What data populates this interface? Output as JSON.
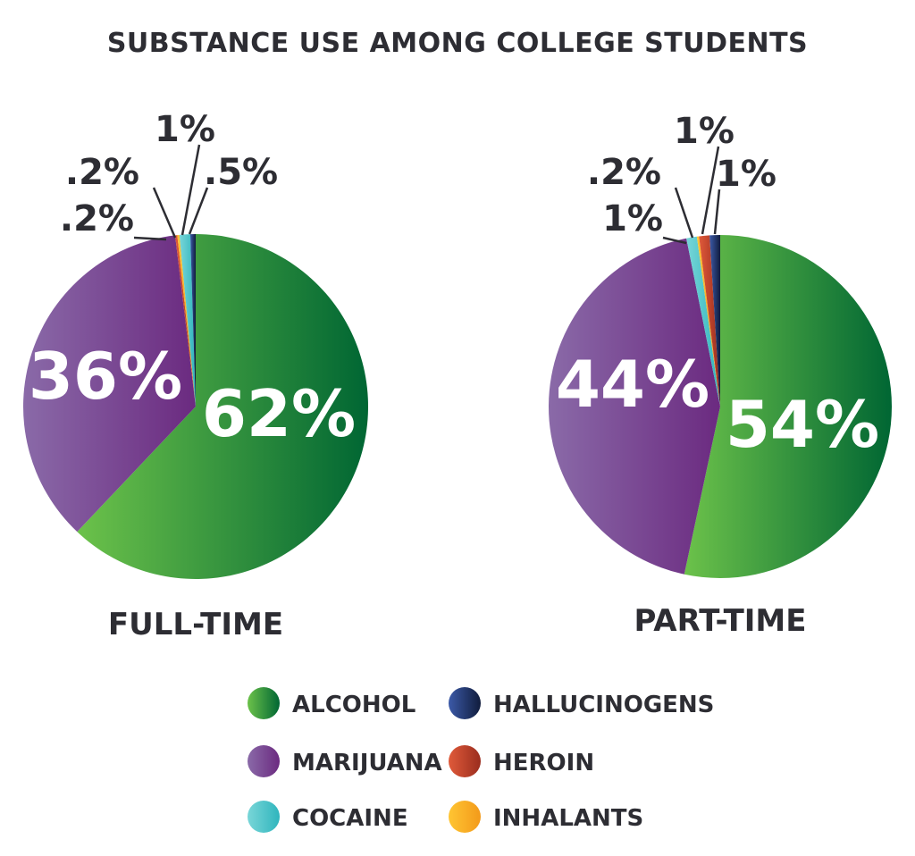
{
  "colors": {
    "alcohol": [
      "#6cc24a",
      "#006633"
    ],
    "marijuana": [
      "#8a6aa8",
      "#6b2a80"
    ],
    "cocaine": [
      "#79d6d8",
      "#2fb5bd"
    ],
    "hallucinogens": [
      "#3c5aa8",
      "#101c3c"
    ],
    "heroin": [
      "#e05a3a",
      "#9a2d1e"
    ],
    "inhalants": [
      "#ffc533",
      "#f39a1a"
    ],
    "text": "#2d2d33"
  },
  "chart_data": {
    "type": "pie",
    "title": "SUBSTANCE USE AMONG COLLEGE STUDENTS",
    "legend": [
      {
        "key": "alcohol",
        "label": "ALCOHOL"
      },
      {
        "key": "hallucinogens",
        "label": "HALLUCINOGENS"
      },
      {
        "key": "marijuana",
        "label": "MARIJUANA"
      },
      {
        "key": "heroin",
        "label": "HEROIN"
      },
      {
        "key": "cocaine",
        "label": "COCAINE"
      },
      {
        "key": "inhalants",
        "label": "INHALANTS"
      }
    ],
    "charts": [
      {
        "label": "FULL-TIME",
        "slices": [
          {
            "key": "alcohol",
            "value": 62,
            "label": "62%"
          },
          {
            "key": "marijuana",
            "value": 36,
            "label": "36%"
          },
          {
            "key": "heroin",
            "value": 0.2,
            "label": ".2%"
          },
          {
            "key": "inhalants",
            "value": 0.2,
            "label": ".2%"
          },
          {
            "key": "cocaine",
            "value": 1,
            "label": "1%"
          },
          {
            "key": "hallucinogens",
            "value": 0.5,
            "label": ".5%"
          }
        ]
      },
      {
        "label": "PART-TIME",
        "slices": [
          {
            "key": "alcohol",
            "value": 54,
            "label": "54%"
          },
          {
            "key": "marijuana",
            "value": 44,
            "label": "44%"
          },
          {
            "key": "cocaine",
            "value": 1,
            "label": "1%"
          },
          {
            "key": "inhalants",
            "value": 0.2,
            "label": ".2%"
          },
          {
            "key": "heroin",
            "value": 1,
            "label": "1%"
          },
          {
            "key": "hallucinogens",
            "value": 1,
            "label": "1%"
          }
        ]
      }
    ]
  }
}
